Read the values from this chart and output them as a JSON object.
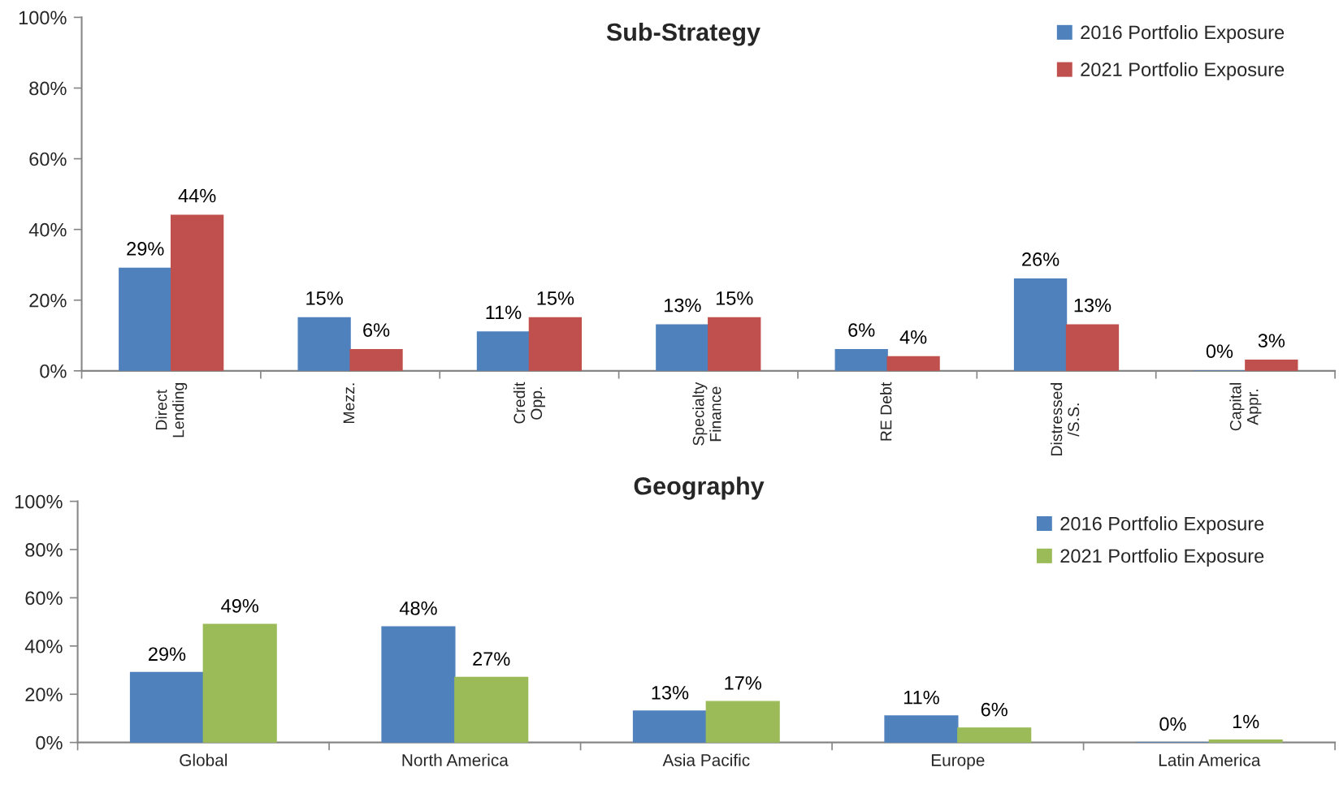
{
  "chart_data": [
    {
      "type": "bar",
      "title": "Sub-Strategy",
      "categories": [
        "Direct\nLending",
        "Mezz.",
        "Credit\nOpp.",
        "Specialty\nFinance",
        "RE Debt",
        "Distressed\n/S.S.",
        "Capital\nAppr."
      ],
      "series": [
        {
          "name": "2016 Portfolio Exposure",
          "color": "#4f81bd",
          "values": [
            29,
            15,
            11,
            13,
            6,
            26,
            0
          ],
          "value_labels": [
            "29%",
            "15%",
            "11%",
            "13%",
            "6%",
            "26%",
            "0%"
          ]
        },
        {
          "name": "2021 Portfolio Exposure",
          "color": "#c0504d",
          "values": [
            44,
            6,
            15,
            15,
            4,
            13,
            3
          ],
          "value_labels": [
            "44%",
            "6%",
            "15%",
            "15%",
            "4%",
            "13%",
            "3%"
          ]
        }
      ],
      "ylim": [
        0,
        100
      ],
      "yticks": [
        {
          "value": 0,
          "label": "0%"
        },
        {
          "value": 20,
          "label": "20%"
        },
        {
          "value": 40,
          "label": "40%"
        },
        {
          "value": 60,
          "label": "60%"
        },
        {
          "value": 80,
          "label": "80%"
        },
        {
          "value": 100,
          "label": "100%"
        }
      ],
      "legend": "top right"
    },
    {
      "type": "bar",
      "title": "Geography",
      "categories": [
        "Global",
        "North America",
        "Asia Pacific",
        "Europe",
        "Latin America"
      ],
      "series": [
        {
          "name": "2016 Portfolio Exposure",
          "color": "#4f81bd",
          "values": [
            29,
            48,
            13,
            11,
            0
          ],
          "value_labels": [
            "29%",
            "48%",
            "13%",
            "11%",
            "0%"
          ]
        },
        {
          "name": "2021 Portfolio Exposure",
          "color": "#9bbb59",
          "values": [
            49,
            27,
            17,
            6,
            1
          ],
          "value_labels": [
            "49%",
            "27%",
            "17%",
            "6%",
            "1%"
          ]
        }
      ],
      "ylim": [
        0,
        100
      ],
      "yticks": [
        {
          "value": 0,
          "label": "0%"
        },
        {
          "value": 20,
          "label": "20%"
        },
        {
          "value": 40,
          "label": "40%"
        },
        {
          "value": 60,
          "label": "60%"
        },
        {
          "value": 80,
          "label": "80%"
        },
        {
          "value": 100,
          "label": "100%"
        }
      ],
      "legend": "top right"
    }
  ]
}
